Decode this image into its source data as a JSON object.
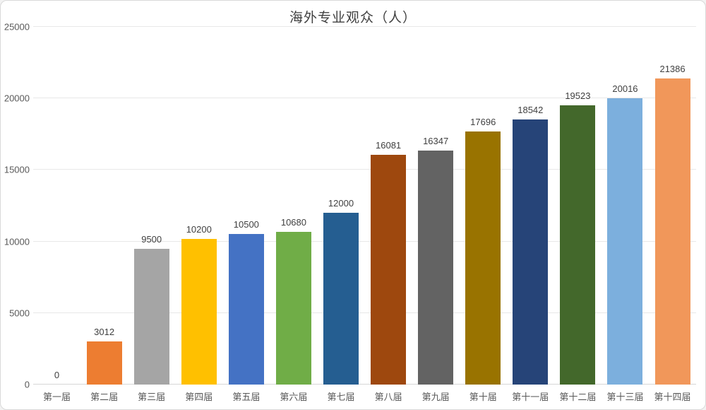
{
  "window": {
    "background": "#ffffff",
    "frame_border_color": "#d9d9d9"
  },
  "chart_data": {
    "type": "bar",
    "title": "海外专业观众（人）",
    "categories": [
      "第一届",
      "第二届",
      "第三届",
      "第四届",
      "第五届",
      "第六届",
      "第七届",
      "第八届",
      "第九届",
      "第十届",
      "第十一届",
      "第十二届",
      "第十三届",
      "第十四届"
    ],
    "values": [
      0,
      3012,
      9500,
      10200,
      10500,
      10680,
      12000,
      16081,
      16347,
      17696,
      18542,
      19523,
      20016,
      21386
    ],
    "bar_colors": [
      "#4472C4",
      "#ED7D31",
      "#A5A5A5",
      "#FFC000",
      "#4472C4",
      "#70AD47",
      "#255E91",
      "#9E480E",
      "#636363",
      "#997300",
      "#264478",
      "#43682B",
      "#7CAFDD",
      "#F1975A"
    ],
    "xlabel": "",
    "ylabel": "",
    "ylim": [
      0,
      25000
    ],
    "yticks": [
      0,
      5000,
      10000,
      15000,
      20000,
      25000
    ],
    "grid": true,
    "legend": "none",
    "value_labels": true
  },
  "style": {
    "gridline_color": "#e8e8e8",
    "axis_line_color": "#d6d6d6",
    "tick_label_color": "#595959",
    "value_label_color": "#404040",
    "title_color": "#404040"
  }
}
